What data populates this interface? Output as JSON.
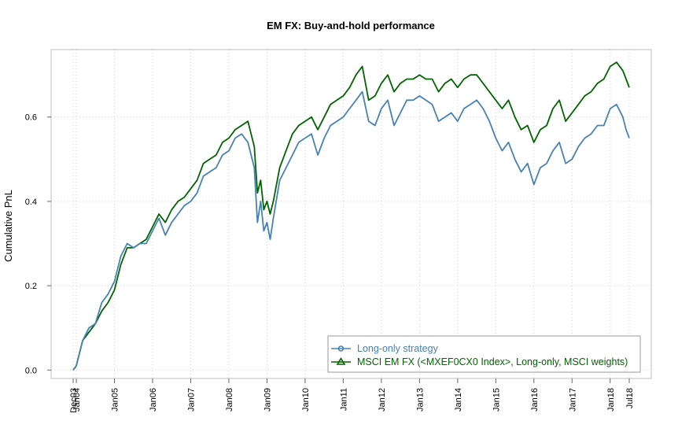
{
  "chart_data": {
    "type": "line",
    "title": "EM FX: Buy-and-hold performance",
    "xlabel": "",
    "ylabel": "Cumulative PnL",
    "xlim": [
      "2003-12",
      "2018-07"
    ],
    "ylim": [
      -0.02,
      0.76
    ],
    "yticks": [
      0.0,
      0.2,
      0.4,
      0.6
    ],
    "ytick_labels": [
      "0.0",
      "0.2",
      "0.4",
      "0.6"
    ],
    "xticks": [
      "2003-12",
      "2004-01",
      "2005-01",
      "2006-01",
      "2007-01",
      "2008-01",
      "2009-01",
      "2010-01",
      "2011-01",
      "2012-01",
      "2013-01",
      "2014-01",
      "2015-01",
      "2016-01",
      "2017-01",
      "2018-01",
      "2018-07"
    ],
    "xtick_labels": [
      "Dec03",
      "Jan04",
      "Jan05",
      "Jan06",
      "Jan07",
      "Jan08",
      "Jan09",
      "Jan10",
      "Jan11",
      "Jan12",
      "Jan13",
      "Jan14",
      "Jan15",
      "Jan16",
      "Jan17",
      "Jan18",
      "Jul18"
    ],
    "grid": true,
    "legend_position": "bottom-right",
    "series": [
      {
        "name": "Long-only strategy",
        "color": "#4682B4",
        "marker": "circle",
        "points": [
          [
            "2003-12",
            0.0
          ],
          [
            "2004-01",
            0.01
          ],
          [
            "2004-03",
            0.07
          ],
          [
            "2004-05",
            0.1
          ],
          [
            "2004-07",
            0.11
          ],
          [
            "2004-09",
            0.16
          ],
          [
            "2004-11",
            0.18
          ],
          [
            "2005-01",
            0.21
          ],
          [
            "2005-03",
            0.27
          ],
          [
            "2005-05",
            0.3
          ],
          [
            "2005-07",
            0.29
          ],
          [
            "2005-09",
            0.3
          ],
          [
            "2005-11",
            0.3
          ],
          [
            "2006-01",
            0.33
          ],
          [
            "2006-03",
            0.36
          ],
          [
            "2006-05",
            0.32
          ],
          [
            "2006-07",
            0.35
          ],
          [
            "2006-09",
            0.37
          ],
          [
            "2006-11",
            0.39
          ],
          [
            "2007-01",
            0.4
          ],
          [
            "2007-03",
            0.42
          ],
          [
            "2007-05",
            0.46
          ],
          [
            "2007-07",
            0.47
          ],
          [
            "2007-09",
            0.48
          ],
          [
            "2007-11",
            0.51
          ],
          [
            "2008-01",
            0.52
          ],
          [
            "2008-03",
            0.55
          ],
          [
            "2008-05",
            0.56
          ],
          [
            "2008-07",
            0.54
          ],
          [
            "2008-09",
            0.48
          ],
          [
            "2008-10",
            0.35
          ],
          [
            "2008-11",
            0.4
          ],
          [
            "2008-12",
            0.33
          ],
          [
            "2009-01",
            0.35
          ],
          [
            "2009-02",
            0.31
          ],
          [
            "2009-03",
            0.36
          ],
          [
            "2009-05",
            0.45
          ],
          [
            "2009-07",
            0.48
          ],
          [
            "2009-09",
            0.51
          ],
          [
            "2009-11",
            0.54
          ],
          [
            "2010-01",
            0.55
          ],
          [
            "2010-03",
            0.56
          ],
          [
            "2010-05",
            0.51
          ],
          [
            "2010-07",
            0.55
          ],
          [
            "2010-09",
            0.58
          ],
          [
            "2010-11",
            0.59
          ],
          [
            "2011-01",
            0.6
          ],
          [
            "2011-03",
            0.62
          ],
          [
            "2011-05",
            0.64
          ],
          [
            "2011-07",
            0.66
          ],
          [
            "2011-09",
            0.59
          ],
          [
            "2011-11",
            0.58
          ],
          [
            "2012-01",
            0.62
          ],
          [
            "2012-03",
            0.64
          ],
          [
            "2012-05",
            0.58
          ],
          [
            "2012-07",
            0.61
          ],
          [
            "2012-09",
            0.64
          ],
          [
            "2012-11",
            0.64
          ],
          [
            "2013-01",
            0.65
          ],
          [
            "2013-03",
            0.64
          ],
          [
            "2013-05",
            0.63
          ],
          [
            "2013-07",
            0.59
          ],
          [
            "2013-09",
            0.6
          ],
          [
            "2013-11",
            0.61
          ],
          [
            "2014-01",
            0.59
          ],
          [
            "2014-03",
            0.62
          ],
          [
            "2014-05",
            0.63
          ],
          [
            "2014-07",
            0.64
          ],
          [
            "2014-09",
            0.62
          ],
          [
            "2014-11",
            0.59
          ],
          [
            "2015-01",
            0.55
          ],
          [
            "2015-03",
            0.52
          ],
          [
            "2015-05",
            0.54
          ],
          [
            "2015-07",
            0.5
          ],
          [
            "2015-09",
            0.47
          ],
          [
            "2015-11",
            0.49
          ],
          [
            "2016-01",
            0.44
          ],
          [
            "2016-03",
            0.48
          ],
          [
            "2016-05",
            0.49
          ],
          [
            "2016-07",
            0.52
          ],
          [
            "2016-09",
            0.54
          ],
          [
            "2016-11",
            0.49
          ],
          [
            "2017-01",
            0.5
          ],
          [
            "2017-03",
            0.53
          ],
          [
            "2017-05",
            0.55
          ],
          [
            "2017-07",
            0.56
          ],
          [
            "2017-09",
            0.58
          ],
          [
            "2017-11",
            0.58
          ],
          [
            "2018-01",
            0.62
          ],
          [
            "2018-03",
            0.63
          ],
          [
            "2018-05",
            0.6
          ],
          [
            "2018-06",
            0.57
          ],
          [
            "2018-07",
            0.55
          ]
        ]
      },
      {
        "name": "MSCI EM FX (<MXEF0CX0 Index>, Long-only, MSCI weights)",
        "color": "#006400",
        "marker": "triangle",
        "points": [
          [
            "2003-12",
            0.0
          ],
          [
            "2004-01",
            0.01
          ],
          [
            "2004-03",
            0.07
          ],
          [
            "2004-05",
            0.09
          ],
          [
            "2004-07",
            0.11
          ],
          [
            "2004-09",
            0.14
          ],
          [
            "2004-11",
            0.16
          ],
          [
            "2005-01",
            0.19
          ],
          [
            "2005-03",
            0.25
          ],
          [
            "2005-05",
            0.29
          ],
          [
            "2005-07",
            0.29
          ],
          [
            "2005-09",
            0.3
          ],
          [
            "2005-11",
            0.31
          ],
          [
            "2006-01",
            0.34
          ],
          [
            "2006-03",
            0.37
          ],
          [
            "2006-05",
            0.35
          ],
          [
            "2006-07",
            0.38
          ],
          [
            "2006-09",
            0.4
          ],
          [
            "2006-11",
            0.41
          ],
          [
            "2007-01",
            0.43
          ],
          [
            "2007-03",
            0.45
          ],
          [
            "2007-05",
            0.49
          ],
          [
            "2007-07",
            0.5
          ],
          [
            "2007-09",
            0.51
          ],
          [
            "2007-11",
            0.54
          ],
          [
            "2008-01",
            0.55
          ],
          [
            "2008-03",
            0.57
          ],
          [
            "2008-05",
            0.58
          ],
          [
            "2008-07",
            0.59
          ],
          [
            "2008-09",
            0.53
          ],
          [
            "2008-10",
            0.42
          ],
          [
            "2008-11",
            0.45
          ],
          [
            "2008-12",
            0.38
          ],
          [
            "2009-01",
            0.4
          ],
          [
            "2009-02",
            0.37
          ],
          [
            "2009-03",
            0.4
          ],
          [
            "2009-05",
            0.48
          ],
          [
            "2009-07",
            0.52
          ],
          [
            "2009-09",
            0.56
          ],
          [
            "2009-11",
            0.58
          ],
          [
            "2010-01",
            0.59
          ],
          [
            "2010-03",
            0.6
          ],
          [
            "2010-05",
            0.57
          ],
          [
            "2010-07",
            0.6
          ],
          [
            "2010-09",
            0.63
          ],
          [
            "2010-11",
            0.64
          ],
          [
            "2011-01",
            0.65
          ],
          [
            "2011-03",
            0.67
          ],
          [
            "2011-05",
            0.7
          ],
          [
            "2011-07",
            0.72
          ],
          [
            "2011-09",
            0.64
          ],
          [
            "2011-11",
            0.65
          ],
          [
            "2012-01",
            0.68
          ],
          [
            "2012-03",
            0.7
          ],
          [
            "2012-05",
            0.66
          ],
          [
            "2012-07",
            0.68
          ],
          [
            "2012-09",
            0.69
          ],
          [
            "2012-11",
            0.69
          ],
          [
            "2013-01",
            0.7
          ],
          [
            "2013-03",
            0.69
          ],
          [
            "2013-05",
            0.69
          ],
          [
            "2013-07",
            0.66
          ],
          [
            "2013-09",
            0.68
          ],
          [
            "2013-11",
            0.69
          ],
          [
            "2014-01",
            0.67
          ],
          [
            "2014-03",
            0.69
          ],
          [
            "2014-05",
            0.7
          ],
          [
            "2014-07",
            0.7
          ],
          [
            "2014-09",
            0.68
          ],
          [
            "2014-11",
            0.66
          ],
          [
            "2015-01",
            0.64
          ],
          [
            "2015-03",
            0.62
          ],
          [
            "2015-05",
            0.64
          ],
          [
            "2015-07",
            0.6
          ],
          [
            "2015-09",
            0.57
          ],
          [
            "2015-11",
            0.58
          ],
          [
            "2016-01",
            0.54
          ],
          [
            "2016-03",
            0.57
          ],
          [
            "2016-05",
            0.58
          ],
          [
            "2016-07",
            0.62
          ],
          [
            "2016-09",
            0.64
          ],
          [
            "2016-11",
            0.59
          ],
          [
            "2017-01",
            0.61
          ],
          [
            "2017-03",
            0.63
          ],
          [
            "2017-05",
            0.65
          ],
          [
            "2017-07",
            0.66
          ],
          [
            "2017-09",
            0.68
          ],
          [
            "2017-11",
            0.69
          ],
          [
            "2018-01",
            0.72
          ],
          [
            "2018-03",
            0.73
          ],
          [
            "2018-05",
            0.71
          ],
          [
            "2018-06",
            0.69
          ],
          [
            "2018-07",
            0.67
          ]
        ]
      }
    ]
  }
}
